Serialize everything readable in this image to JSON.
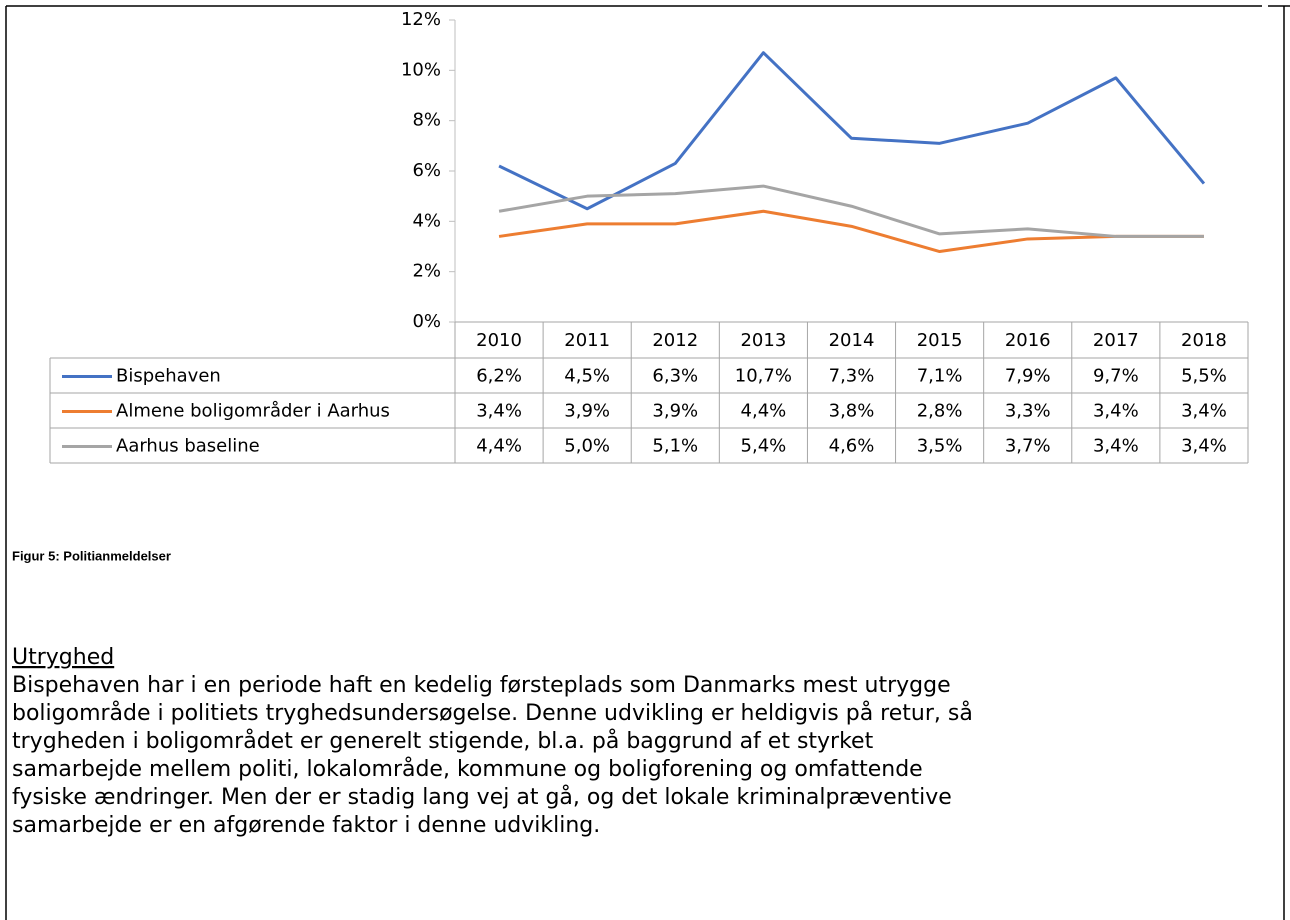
{
  "chart_data": {
    "type": "line",
    "categories": [
      "2010",
      "2011",
      "2012",
      "2013",
      "2014",
      "2015",
      "2016",
      "2017",
      "2018"
    ],
    "series": [
      {
        "name": "Bispehaven",
        "color": "#4472c4",
        "values": [
          6.2,
          4.5,
          6.3,
          10.7,
          7.3,
          7.1,
          7.9,
          9.7,
          5.5
        ],
        "value_labels": [
          "6,2%",
          "4,5%",
          "6,3%",
          "10,7%",
          "7,3%",
          "7,1%",
          "7,9%",
          "9,7%",
          "5,5%"
        ]
      },
      {
        "name": "Almene boligområder i Aarhus",
        "color": "#ed7d31",
        "values": [
          3.4,
          3.9,
          3.9,
          4.4,
          3.8,
          2.8,
          3.3,
          3.4,
          3.4
        ],
        "value_labels": [
          "3,4%",
          "3,9%",
          "3,9%",
          "4,4%",
          "3,8%",
          "2,8%",
          "3,3%",
          "3,4%",
          "3,4%"
        ]
      },
      {
        "name": "Aarhus baseline",
        "color": "#a5a5a5",
        "values": [
          4.4,
          5.0,
          5.1,
          5.4,
          4.6,
          3.5,
          3.7,
          3.4,
          3.4
        ],
        "value_labels": [
          "4,4%",
          "5,0%",
          "5,1%",
          "5,4%",
          "4,6%",
          "3,5%",
          "3,7%",
          "3,4%",
          "3,4%"
        ]
      }
    ],
    "ylim": [
      0,
      12
    ],
    "yticks": [
      {
        "value": 0,
        "label": "0%"
      },
      {
        "value": 2,
        "label": "2%"
      },
      {
        "value": 4,
        "label": "4%"
      },
      {
        "value": 6,
        "label": "6%"
      },
      {
        "value": 8,
        "label": "8%"
      },
      {
        "value": 10,
        "label": "10%"
      },
      {
        "value": 12,
        "label": "12%"
      }
    ]
  },
  "figure_caption": "Figur 5: Politianmeldelser",
  "section": {
    "heading": "Utryghed",
    "lines": [
      "Bispehaven har i en periode haft en kedelig førsteplads som Danmarks mest utrygge",
      "boligområde i politiets tryghedsundersøgelse. Denne udvikling er heldigvis på retur, så",
      "trygheden i boligområdet er generelt stigende, bl.a. på baggrund af et styrket",
      "samarbejde mellem politi, lokalområde, kommune og boligforening og omfattende",
      "fysiske ændringer. Men der er stadig lang vej at gå, og det lokale kriminalpræventive",
      "samarbejde er en afgørende faktor i denne udvikling."
    ]
  }
}
